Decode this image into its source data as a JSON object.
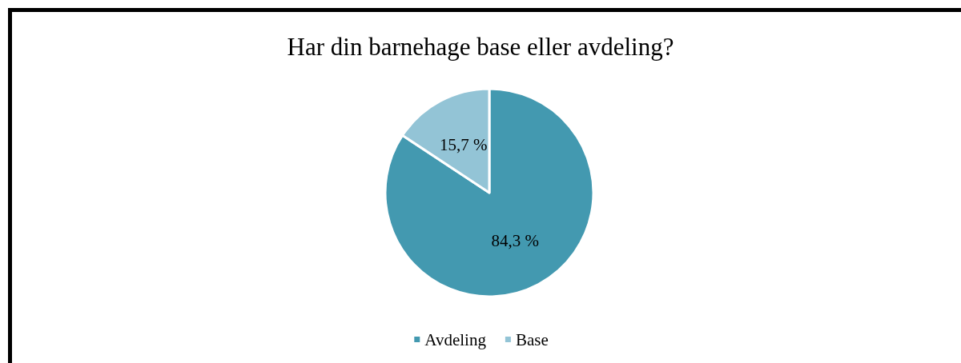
{
  "chart_data": {
    "type": "pie",
    "title": "Har din barnehage base eller avdeling?",
    "categories": [
      "Avdeling",
      "Base"
    ],
    "values": [
      84.3,
      15.7
    ],
    "value_labels": [
      "84,3 %",
      "15,7 %"
    ],
    "colors": [
      "#4399b0",
      "#93c4d6"
    ],
    "legend": "bottom"
  }
}
